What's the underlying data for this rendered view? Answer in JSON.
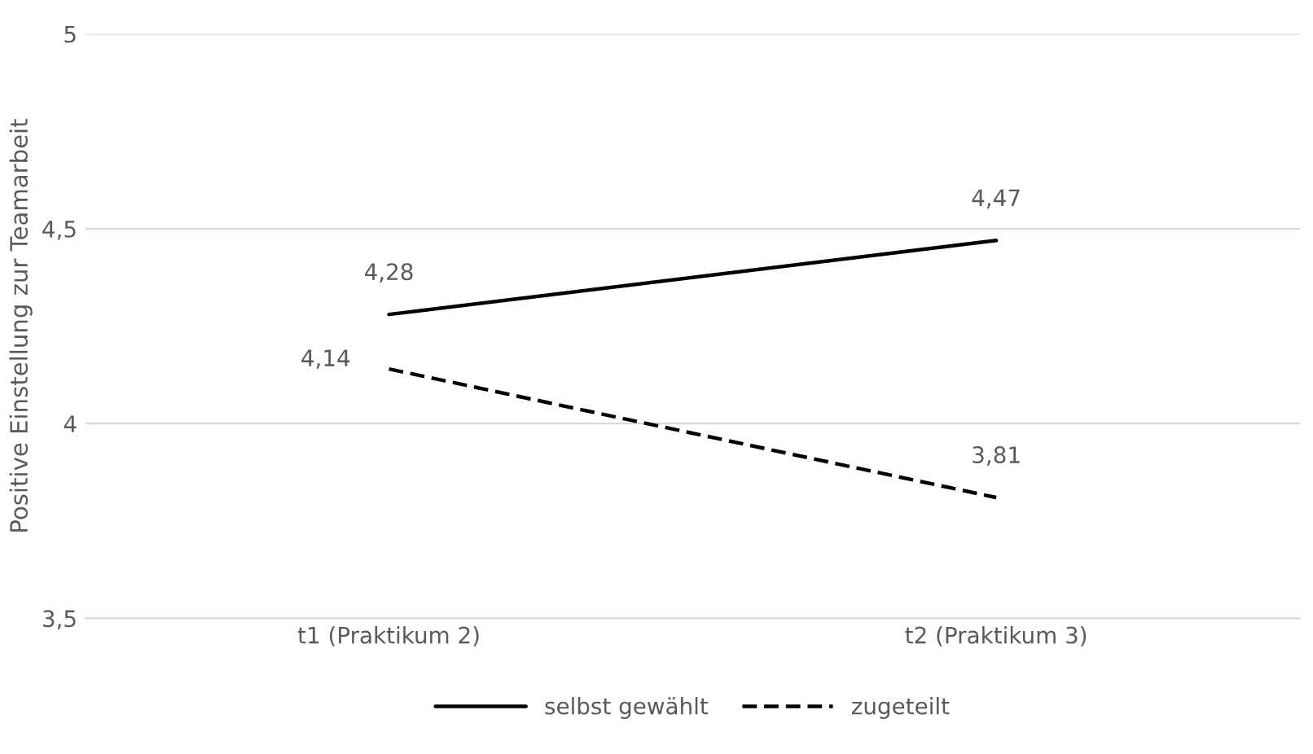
{
  "chart_data": {
    "type": "line",
    "ylabel": "Positive Einstellung zur Teamarbeit",
    "categories": [
      "t1 (Praktikum 2)",
      "t2 (Praktikum 3)"
    ],
    "series": [
      {
        "name": "selbst gewählt",
        "color": "#000000",
        "line_style": "solid",
        "values": [
          4.28,
          4.47
        ],
        "value_labels": [
          "4,28",
          "4,47"
        ]
      },
      {
        "name": "zugeteilt",
        "color": "#000000",
        "line_style": "dashed",
        "values": [
          4.14,
          3.81
        ],
        "value_labels": [
          "4,14",
          "3,81"
        ]
      }
    ],
    "ylim": [
      3.5,
      5
    ],
    "yticks": [
      {
        "value": 3.5,
        "label": "3,5"
      },
      {
        "value": 4,
        "label": "4"
      },
      {
        "value": 4.5,
        "label": "4,5"
      },
      {
        "value": 5,
        "label": "5"
      }
    ],
    "grid": "y",
    "legend": "bottom",
    "marker": "none"
  }
}
